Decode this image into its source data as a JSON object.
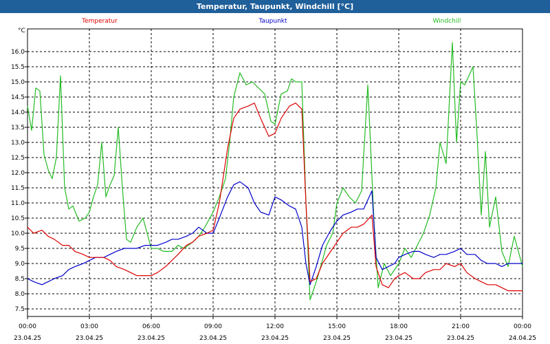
{
  "window_title": "Temperatur, Taupunkt, Windchill [°C]",
  "chart_data": {
    "type": "line",
    "ylabel": "°C",
    "ylim": [
      7.25,
      16.75
    ],
    "yticks": [
      7.5,
      8.0,
      8.5,
      9.0,
      9.5,
      10.0,
      10.5,
      11.0,
      11.5,
      12.0,
      12.5,
      13.0,
      13.5,
      14.0,
      14.5,
      15.0,
      15.5,
      16.0
    ],
    "ytick_labels": [
      "7.5",
      "8.0",
      "8.5",
      "9.0",
      "9.5",
      "10.0",
      "10.5",
      "11.0",
      "11.5",
      "12.0",
      "12.5",
      "13.0",
      "13.5",
      "14.0",
      "14.5",
      "15.0",
      "15.5",
      "16.0"
    ],
    "xlim": [
      0,
      24
    ],
    "xticks": [
      {
        "hour": 0,
        "time": "00:00",
        "date": "23.04.25"
      },
      {
        "hour": 3,
        "time": "03:00",
        "date": "23.04.25"
      },
      {
        "hour": 6,
        "time": "06:00",
        "date": "23.04.25"
      },
      {
        "hour": 9,
        "time": "09:00",
        "date": "23.04.25"
      },
      {
        "hour": 12,
        "time": "12:00",
        "date": "23.04.25"
      },
      {
        "hour": 15,
        "time": "15:00",
        "date": "23.04.25"
      },
      {
        "hour": 18,
        "time": "18:00",
        "date": "23.04.25"
      },
      {
        "hour": 21,
        "time": "21:00",
        "date": "23.04.25"
      },
      {
        "hour": 24,
        "time": "00:00",
        "date": "24.04.25"
      }
    ],
    "grid": true,
    "series": [
      {
        "name": "Temperatur",
        "color": "#dd0000",
        "x": [
          0.0,
          0.3,
          0.7,
          1.0,
          1.3,
          1.7,
          2.0,
          2.3,
          2.7,
          3.0,
          3.3,
          3.7,
          4.0,
          4.3,
          4.7,
          5.0,
          5.3,
          5.7,
          6.0,
          6.3,
          6.7,
          7.0,
          7.3,
          7.7,
          8.0,
          8.3,
          8.7,
          9.0,
          9.3,
          9.7,
          10.0,
          10.3,
          10.7,
          11.0,
          11.3,
          11.7,
          12.0,
          12.3,
          12.7,
          13.0,
          13.3,
          13.5,
          13.7,
          14.0,
          14.3,
          14.7,
          15.0,
          15.3,
          15.7,
          16.0,
          16.3,
          16.7,
          16.9,
          17.2,
          17.5,
          17.8,
          18.0,
          18.3,
          18.7,
          19.0,
          19.3,
          19.7,
          20.0,
          20.3,
          20.7,
          21.0,
          21.3,
          21.7,
          22.0,
          22.3,
          22.7,
          23.0,
          23.3,
          23.7,
          24.0
        ],
        "values": [
          10.2,
          10.0,
          10.1,
          9.9,
          9.8,
          9.6,
          9.6,
          9.4,
          9.3,
          9.2,
          9.2,
          9.2,
          9.1,
          8.9,
          8.8,
          8.7,
          8.6,
          8.6,
          8.6,
          8.7,
          8.9,
          9.1,
          9.3,
          9.6,
          9.7,
          9.9,
          10.0,
          10.1,
          11.0,
          12.8,
          13.8,
          14.1,
          14.2,
          14.3,
          13.8,
          13.2,
          13.3,
          13.8,
          14.2,
          14.3,
          14.1,
          11.0,
          8.4,
          8.5,
          9.0,
          9.4,
          9.7,
          10.0,
          10.2,
          10.2,
          10.3,
          10.6,
          8.9,
          8.3,
          8.2,
          8.5,
          8.6,
          8.7,
          8.5,
          8.5,
          8.7,
          8.8,
          8.8,
          9.0,
          8.9,
          9.0,
          8.7,
          8.5,
          8.4,
          8.3,
          8.3,
          8.2,
          8.1,
          8.1,
          8.1
        ]
      },
      {
        "name": "Taupunkt",
        "color": "#0000cc",
        "x": [
          0.0,
          0.3,
          0.7,
          1.0,
          1.3,
          1.7,
          2.0,
          2.3,
          2.7,
          3.0,
          3.3,
          3.7,
          4.0,
          4.3,
          4.7,
          5.0,
          5.3,
          5.7,
          6.0,
          6.3,
          6.7,
          7.0,
          7.3,
          7.7,
          8.0,
          8.3,
          8.7,
          9.0,
          9.3,
          9.7,
          10.0,
          10.3,
          10.7,
          11.0,
          11.3,
          11.7,
          12.0,
          12.3,
          12.7,
          13.0,
          13.3,
          13.5,
          13.7,
          14.0,
          14.3,
          14.7,
          15.0,
          15.3,
          15.7,
          16.0,
          16.3,
          16.7,
          16.9,
          17.2,
          17.5,
          17.8,
          18.0,
          18.3,
          18.7,
          19.0,
          19.3,
          19.7,
          20.0,
          20.3,
          20.7,
          21.0,
          21.3,
          21.7,
          22.0,
          22.3,
          22.7,
          23.0,
          23.3,
          23.7,
          24.0
        ],
        "values": [
          8.5,
          8.4,
          8.3,
          8.4,
          8.5,
          8.6,
          8.8,
          8.9,
          9.0,
          9.1,
          9.2,
          9.2,
          9.3,
          9.4,
          9.5,
          9.5,
          9.5,
          9.6,
          9.6,
          9.6,
          9.7,
          9.8,
          9.8,
          9.9,
          10.0,
          10.2,
          10.0,
          10.0,
          10.5,
          11.2,
          11.6,
          11.7,
          11.5,
          11.0,
          10.7,
          10.6,
          11.2,
          11.1,
          10.9,
          10.8,
          10.2,
          9.0,
          8.3,
          8.9,
          9.6,
          10.1,
          10.4,
          10.6,
          10.7,
          10.8,
          10.8,
          11.4,
          9.2,
          8.8,
          8.9,
          9.0,
          9.2,
          9.3,
          9.4,
          9.4,
          9.3,
          9.2,
          9.3,
          9.3,
          9.4,
          9.5,
          9.3,
          9.3,
          9.1,
          9.0,
          9.0,
          8.9,
          9.0,
          9.0,
          9.0
        ]
      },
      {
        "name": "Windchill",
        "color": "#22bb22",
        "x": [
          0.0,
          0.2,
          0.4,
          0.6,
          0.8,
          1.0,
          1.2,
          1.4,
          1.6,
          1.8,
          2.0,
          2.2,
          2.5,
          2.8,
          3.0,
          3.2,
          3.4,
          3.6,
          3.8,
          4.0,
          4.2,
          4.4,
          4.6,
          4.8,
          5.0,
          5.3,
          5.6,
          6.0,
          6.3,
          6.6,
          7.0,
          7.3,
          7.6,
          8.0,
          8.3,
          8.6,
          9.0,
          9.3,
          9.6,
          9.8,
          10.0,
          10.3,
          10.6,
          10.9,
          11.2,
          11.5,
          11.8,
          12.0,
          12.3,
          12.6,
          12.8,
          13.0,
          13.3,
          13.5,
          13.7,
          14.0,
          14.3,
          14.5,
          14.8,
          15.0,
          15.3,
          15.6,
          15.9,
          16.2,
          16.5,
          16.8,
          17.0,
          17.3,
          17.6,
          18.0,
          18.3,
          18.6,
          18.9,
          19.2,
          19.5,
          19.8,
          20.0,
          20.3,
          20.6,
          20.8,
          21.0,
          21.2,
          21.4,
          21.6,
          21.8,
          22.0,
          22.2,
          22.4,
          22.7,
          23.0,
          23.3,
          23.6,
          24.0
        ],
        "values": [
          14.2,
          13.4,
          14.8,
          14.7,
          12.6,
          12.1,
          11.8,
          12.5,
          15.2,
          11.5,
          10.8,
          10.9,
          10.4,
          10.5,
          10.7,
          11.2,
          11.6,
          13.0,
          11.2,
          11.6,
          11.9,
          13.5,
          11.5,
          9.8,
          9.7,
          10.2,
          10.5,
          9.5,
          9.5,
          9.4,
          9.4,
          9.6,
          9.5,
          9.7,
          9.9,
          10.2,
          10.7,
          11.2,
          11.8,
          13.0,
          14.5,
          15.3,
          14.9,
          15.0,
          14.8,
          14.6,
          13.7,
          13.6,
          14.6,
          14.7,
          15.1,
          15.0,
          15.0,
          11.0,
          7.8,
          8.4,
          9.1,
          9.6,
          10.0,
          11.0,
          11.5,
          11.2,
          11.0,
          11.4,
          14.9,
          10.4,
          8.2,
          9.0,
          8.6,
          9.0,
          9.5,
          9.2,
          9.6,
          10.0,
          10.6,
          11.5,
          13.0,
          12.3,
          16.3,
          13.0,
          15.0,
          14.9,
          15.2,
          15.5,
          13.2,
          10.6,
          12.7,
          10.2,
          11.2,
          9.4,
          8.9,
          9.9,
          8.9
        ]
      }
    ]
  }
}
